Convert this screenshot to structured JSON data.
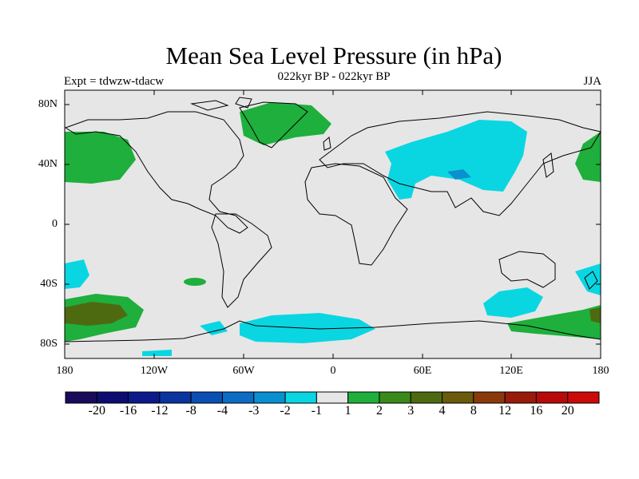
{
  "title": "Mean Sea Level Pressure (in hPa)",
  "subtitle": "022kyr BP - 022kyr BP",
  "left_label": "Expt = tdwzw-tdacw",
  "right_label": "JJA",
  "lat_labels": [
    "80N",
    "40N",
    "0",
    "40S",
    "80S"
  ],
  "lon_labels": [
    "180",
    "120W",
    "60W",
    "0",
    "60E",
    "120E",
    "180"
  ],
  "colorbar": {
    "labels": [
      "-20",
      "-16",
      "-12",
      "-8",
      "-4",
      "-3",
      "-2",
      "-1",
      "1",
      "2",
      "3",
      "4",
      "8",
      "12",
      "16",
      "20"
    ],
    "colors": [
      "#1a0a5a",
      "#0c0c72",
      "#0a1a8a",
      "#0a34a0",
      "#0a50b4",
      "#0c6cc6",
      "#0a90d0",
      "#0ad6e2",
      "#e6e6e6",
      "#1faf3c",
      "#3a8a1a",
      "#4e6a10",
      "#6a5a0a",
      "#8a3a0a",
      "#9a1a0a",
      "#b80a0a",
      "#cc0a0a"
    ]
  },
  "colors": {
    "land_sea_background": "#e6e6e6",
    "coast": "#000000",
    "positive": "#1faf3c",
    "negative": "#0ad6e2"
  }
}
